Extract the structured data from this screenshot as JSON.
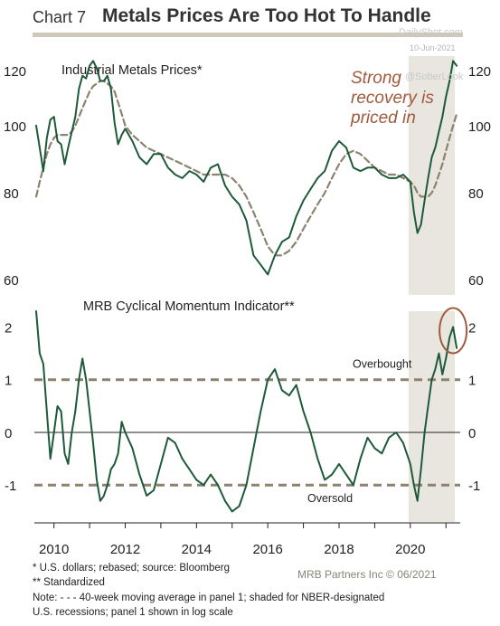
{
  "header": {
    "chart_number": "Chart 7",
    "title": "Metals Prices Are Too Hot To Handle"
  },
  "watermark": {
    "site": "DailyShot.com",
    "date": "10-Jun-2021",
    "handle": "@SoberLook"
  },
  "colors": {
    "price": "#1e5a3a",
    "moving_average": "#8c8270",
    "shading": "#e8e6df",
    "annotation": "#a05a3c",
    "threshold": "#8c8270",
    "title_rule": "#cfc8ba"
  },
  "chart_data": [
    {
      "type": "line",
      "title": "Industrial Metals Prices*",
      "y_scale": "log",
      "ylim": [
        57,
        126
      ],
      "y_ticks": [
        60,
        80,
        100,
        120
      ],
      "x_ticks": [
        2010,
        2012,
        2014,
        2016,
        2018,
        2020
      ],
      "xlim": [
        2009.45,
        2021.4
      ],
      "recession_shading": [
        [
          2019.95,
          2021.25
        ]
      ],
      "annotation": [
        "Strong",
        "recovery is",
        "priced in"
      ],
      "series": [
        {
          "role": "price",
          "x": [
            2009.5,
            2009.6,
            2009.7,
            2009.8,
            2009.9,
            2010.0,
            2010.1,
            2010.2,
            2010.3,
            2010.4,
            2010.5,
            2010.6,
            2010.7,
            2010.8,
            2010.9,
            2011.0,
            2011.1,
            2011.2,
            2011.3,
            2011.4,
            2011.5,
            2011.6,
            2011.7,
            2011.8,
            2011.9,
            2012.0,
            2012.2,
            2012.4,
            2012.6,
            2012.8,
            2013.0,
            2013.2,
            2013.4,
            2013.6,
            2013.8,
            2014.0,
            2014.2,
            2014.4,
            2014.6,
            2014.8,
            2015.0,
            2015.2,
            2015.4,
            2015.6,
            2015.8,
            2016.0,
            2016.2,
            2016.4,
            2016.6,
            2016.8,
            2017.0,
            2017.2,
            2017.4,
            2017.6,
            2017.8,
            2018.0,
            2018.2,
            2018.4,
            2018.6,
            2018.8,
            2019.0,
            2019.2,
            2019.4,
            2019.6,
            2019.8,
            2020.0,
            2020.1,
            2020.2,
            2020.3,
            2020.4,
            2020.5,
            2020.6,
            2020.7,
            2020.8,
            2020.9,
            2021.0,
            2021.1,
            2021.2,
            2021.3
          ],
          "y": [
            100,
            93,
            86,
            96,
            102,
            103,
            95,
            94,
            88,
            93,
            98,
            103,
            113,
            118,
            117,
            122,
            124,
            121,
            116,
            116,
            118,
            113,
            101,
            94,
            97,
            99,
            95,
            90,
            88,
            91,
            91,
            87,
            85,
            84,
            86,
            85,
            83,
            87,
            88,
            82,
            79,
            77,
            73,
            65,
            63,
            61,
            65,
            68,
            69,
            74,
            78,
            81,
            84,
            86,
            92,
            95,
            93,
            87,
            86,
            87,
            87,
            85,
            84,
            84,
            85,
            83,
            75,
            70,
            72,
            78,
            84,
            90,
            93,
            98,
            103,
            110,
            116,
            124,
            122
          ]
        },
        {
          "role": "moving_average",
          "x": [
            2009.5,
            2009.6,
            2009.7,
            2009.8,
            2009.9,
            2010.0,
            2010.1,
            2010.2,
            2010.3,
            2010.4,
            2010.5,
            2010.6,
            2010.7,
            2010.8,
            2010.9,
            2011.0,
            2011.1,
            2011.2,
            2011.3,
            2011.4,
            2011.5,
            2011.6,
            2011.7,
            2011.8,
            2011.9,
            2012.0,
            2012.2,
            2012.4,
            2012.6,
            2012.8,
            2013.0,
            2013.2,
            2013.4,
            2013.6,
            2013.8,
            2014.0,
            2014.2,
            2014.4,
            2014.6,
            2014.8,
            2015.0,
            2015.2,
            2015.4,
            2015.6,
            2015.8,
            2016.0,
            2016.2,
            2016.4,
            2016.6,
            2016.8,
            2017.0,
            2017.2,
            2017.4,
            2017.6,
            2017.8,
            2018.0,
            2018.2,
            2018.4,
            2018.6,
            2018.8,
            2019.0,
            2019.2,
            2019.4,
            2019.6,
            2019.8,
            2020.0,
            2020.1,
            2020.2,
            2020.3,
            2020.4,
            2020.5,
            2020.6,
            2020.7,
            2020.8,
            2020.9,
            2021.0,
            2021.1,
            2021.2,
            2021.3
          ],
          "y": [
            79,
            83,
            87,
            91,
            94,
            96,
            97,
            97,
            97,
            97,
            98,
            100,
            103,
            106,
            109,
            112,
            114,
            115,
            116,
            116,
            115,
            114,
            112,
            108,
            104,
            100,
            97,
            95,
            93,
            92,
            91,
            90,
            89,
            88,
            87,
            86,
            85,
            85,
            85,
            85,
            84,
            82,
            79,
            75,
            71,
            67,
            65,
            65,
            66,
            68,
            71,
            74,
            77,
            80,
            84,
            88,
            91,
            92,
            91,
            89,
            87,
            86,
            85,
            85,
            84,
            83,
            82,
            80,
            79,
            79,
            79,
            80,
            82,
            85,
            88,
            92,
            96,
            100,
            104
          ]
        }
      ]
    },
    {
      "type": "line",
      "title": "MRB Cyclical Momentum Indicator**",
      "ylim": [
        -1.7,
        2.3
      ],
      "y_ticks": [
        -1,
        0,
        1,
        2
      ],
      "thresholds": [
        {
          "y": 1,
          "label": "Overbought"
        },
        {
          "y": -1,
          "label": "Oversold"
        }
      ],
      "x_ticks": [
        2010,
        2012,
        2014,
        2016,
        2018,
        2020
      ],
      "x_tick_labels": [
        "2010",
        "2012",
        "2014",
        "2016",
        "2018",
        "2020"
      ],
      "xlim": [
        2009.45,
        2021.4
      ],
      "recession_shading": [
        [
          2019.95,
          2021.25
        ]
      ],
      "series": [
        {
          "role": "indicator",
          "x": [
            2009.5,
            2009.6,
            2009.7,
            2009.8,
            2009.9,
            2010.0,
            2010.1,
            2010.2,
            2010.3,
            2010.4,
            2010.5,
            2010.6,
            2010.7,
            2010.8,
            2010.9,
            2011.0,
            2011.1,
            2011.2,
            2011.3,
            2011.4,
            2011.5,
            2011.6,
            2011.7,
            2011.8,
            2011.9,
            2012.0,
            2012.2,
            2012.4,
            2012.6,
            2012.8,
            2013.0,
            2013.2,
            2013.4,
            2013.6,
            2013.8,
            2014.0,
            2014.2,
            2014.4,
            2014.6,
            2014.8,
            2015.0,
            2015.2,
            2015.4,
            2015.6,
            2015.8,
            2016.0,
            2016.2,
            2016.4,
            2016.6,
            2016.8,
            2017.0,
            2017.2,
            2017.4,
            2017.6,
            2017.8,
            2018.0,
            2018.2,
            2018.4,
            2018.6,
            2018.8,
            2019.0,
            2019.2,
            2019.4,
            2019.6,
            2019.8,
            2020.0,
            2020.1,
            2020.2,
            2020.3,
            2020.4,
            2020.5,
            2020.6,
            2020.7,
            2020.8,
            2020.9,
            2021.0,
            2021.1,
            2021.2,
            2021.3
          ],
          "y": [
            2.3,
            1.5,
            1.3,
            0.4,
            -0.5,
            0.0,
            0.5,
            0.4,
            -0.4,
            -0.6,
            0.0,
            0.4,
            1.0,
            1.4,
            1.0,
            0.4,
            -0.2,
            -0.9,
            -1.3,
            -1.2,
            -1.0,
            -0.7,
            -0.6,
            -0.4,
            0.2,
            0.0,
            -0.3,
            -0.8,
            -1.2,
            -1.1,
            -0.6,
            -0.1,
            -0.2,
            -0.5,
            -0.7,
            -0.9,
            -1.0,
            -0.8,
            -1.0,
            -1.3,
            -1.5,
            -1.4,
            -1.0,
            -0.3,
            0.4,
            1.0,
            1.2,
            0.8,
            0.7,
            0.9,
            0.4,
            0.0,
            -0.5,
            -0.9,
            -0.8,
            -0.6,
            -0.8,
            -1.0,
            -0.5,
            -0.1,
            -0.3,
            -0.4,
            -0.1,
            0.0,
            -0.2,
            -0.6,
            -1.0,
            -1.3,
            -0.7,
            0.0,
            0.5,
            1.0,
            1.2,
            1.5,
            1.1,
            1.4,
            1.8,
            2.0,
            1.6
          ]
        }
      ]
    }
  ],
  "footnotes": {
    "line1": "*  U.S. dollars; rebased; source: Bloomberg",
    "line2": "** Standardized",
    "line3": "Note: - - - 40-week moving average in panel 1; shaded for NBER-designated",
    "line4": "U.S. recessions; panel 1 shown in log scale",
    "credit": "MRB Partners Inc © 06/2021"
  }
}
